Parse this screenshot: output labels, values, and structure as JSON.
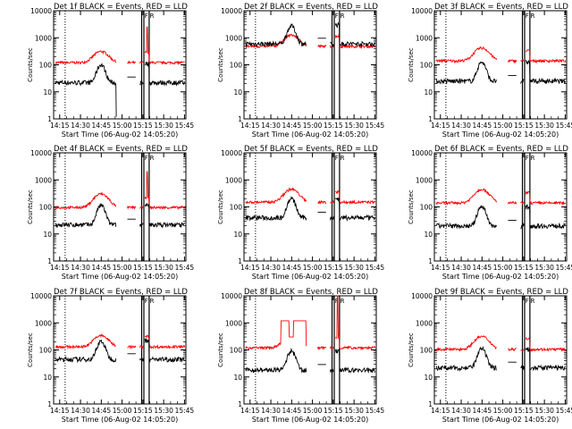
{
  "colors": {
    "events": "#000000",
    "lld": "#ff0000",
    "axes": "#000000",
    "background": "#ffffff"
  },
  "chart_data": {
    "type": "line",
    "y_scale": "log",
    "ylim": [
      1,
      10000
    ],
    "y_ticks": [
      1,
      10,
      100,
      1000,
      10000
    ],
    "y_tick_labels": [
      "1",
      "10",
      "100",
      "1000",
      "10000"
    ],
    "ylabel": "Counts/sec",
    "x_ticks": [
      "14:15",
      "14:30",
      "14:45",
      "15:00",
      "15:15",
      "15:30",
      "15:45"
    ],
    "xlabel": "Start Time (06-Aug-02 14:05:20)",
    "marker_labels": [
      "F",
      "R"
    ],
    "panels": [
      {
        "title": "Det 1f BLACK = Events, RED = LLD",
        "lld_base": 120,
        "events_base": 22,
        "peak_factor": 2.6,
        "spike": 2500
      },
      {
        "title": "Det 2f BLACK = Events, RED = LLD",
        "lld_base": 480,
        "events_base": 600,
        "peak_factor": 2.6,
        "spike": 0
      },
      {
        "title": "Det 3f BLACK = Events, RED = LLD",
        "lld_base": 140,
        "events_base": 25,
        "peak_factor": 3.0,
        "spike": 0
      },
      {
        "title": "Det 4f BLACK = Events, RED = LLD",
        "lld_base": 95,
        "events_base": 22,
        "peak_factor": 3.2,
        "spike": 2000
      },
      {
        "title": "Det 5f BLACK = Events, RED = LLD",
        "lld_base": 150,
        "events_base": 40,
        "peak_factor": 3.0,
        "spike": 0
      },
      {
        "title": "Det 6f BLACK = Events, RED = LLD",
        "lld_base": 140,
        "events_base": 20,
        "peak_factor": 3.2,
        "spike": 0
      },
      {
        "title": "Det 7f BLACK = Events, RED = LLD",
        "lld_base": 130,
        "events_base": 45,
        "peak_factor": 2.6,
        "spike": 0
      },
      {
        "title": "Det 8f BLACK = Events, RED = LLD",
        "lld_base": 120,
        "events_base": 18,
        "peak_factor": 3.0,
        "spike": 10000
      },
      {
        "title": "Det 9f BLACK = Events, RED = LLD",
        "lld_base": 105,
        "events_base": 22,
        "peak_factor": 3.0,
        "spike": 0
      }
    ]
  }
}
